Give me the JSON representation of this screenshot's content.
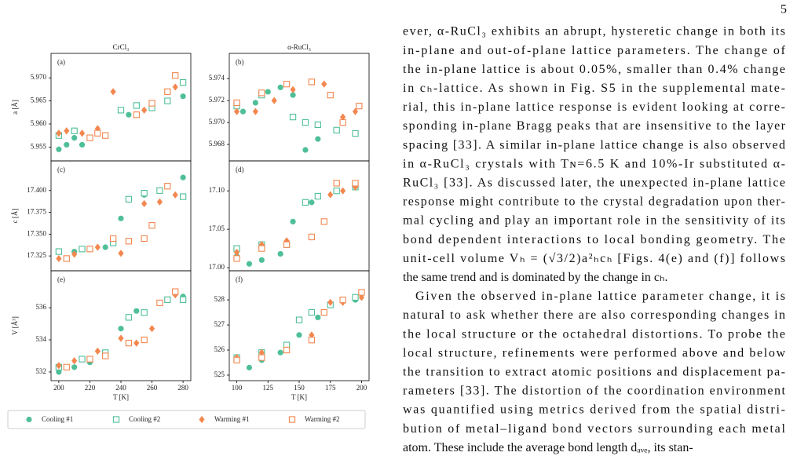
{
  "page_number": "5",
  "figure": {
    "legend_marker_styles": [
      "filled-circle",
      "open-square",
      "filled-diamond",
      "open-square"
    ]
  },
  "chart_data": [
    {
      "type": "scatter",
      "title": "CrCl₃",
      "annotation": "(a)",
      "y_label": "a [Å]",
      "xlim": [
        195,
        285
      ],
      "ylim": [
        5.952,
        5.9753
      ],
      "yticks": [
        5.955,
        {
          "value": 5.96,
          "label": "5.960"
        },
        5.965,
        {
          "value": 5.97,
          "label": "5.970"
        }
      ],
      "series": [
        {
          "name": "Cooling #1",
          "color": "#4fbf98",
          "x": [
            200,
            205,
            210,
            215,
            245,
            260,
            280
          ],
          "values": [
            5.9545,
            5.9555,
            5.957,
            5.9555,
            5.962,
            5.964,
            5.966
          ]
        },
        {
          "name": "Cooling #2",
          "color": "#4fbf98",
          "x": [
            200,
            210,
            240,
            250,
            260,
            270,
            280
          ],
          "values": [
            5.9575,
            5.9585,
            5.963,
            5.964,
            5.9635,
            5.965,
            5.969
          ]
        },
        {
          "name": "Warming #1",
          "color": "#f2874f",
          "x": [
            200,
            205,
            215,
            225,
            235,
            255,
            275
          ],
          "values": [
            5.958,
            5.9585,
            5.958,
            5.959,
            5.967,
            5.963,
            5.968
          ]
        },
        {
          "name": "Warming #2",
          "color": "#f2874f",
          "x": [
            220,
            225,
            230,
            250,
            260,
            270,
            275
          ],
          "values": [
            5.957,
            5.958,
            5.9575,
            5.962,
            5.9645,
            5.967,
            5.9705
          ]
        }
      ]
    },
    {
      "type": "scatter",
      "title": "α-RuCl₃",
      "annotation": "(b)",
      "xlim": [
        94,
        206
      ],
      "ylim": [
        5.9665,
        5.9763
      ],
      "yticks": [
        5.968,
        {
          "value": 5.97,
          "label": "5.970"
        },
        5.972,
        5.974
      ],
      "series": [
        {
          "x": [
            105,
            115,
            125,
            135,
            145,
            155,
            165
          ],
          "values": [
            5.971,
            5.9718,
            5.9728,
            5.9732,
            5.9725,
            5.9675,
            5.9685
          ]
        },
        {
          "x": [
            100,
            120,
            145,
            155,
            165,
            180,
            195
          ],
          "values": [
            5.9715,
            5.9725,
            5.9705,
            5.97,
            5.9698,
            5.9693,
            5.969
          ]
        },
        {
          "x": [
            100,
            115,
            130,
            145,
            170,
            185,
            195
          ],
          "values": [
            5.971,
            5.971,
            5.972,
            5.973,
            5.9735,
            5.9705,
            5.971
          ]
        },
        {
          "x": [
            100,
            120,
            140,
            160,
            175,
            185,
            198
          ],
          "values": [
            5.9718,
            5.9727,
            5.9735,
            5.9737,
            5.9725,
            5.97,
            5.9715
          ]
        }
      ]
    },
    {
      "type": "scatter",
      "annotation": "(c)",
      "y_label": "c [Å]",
      "xlim": [
        195,
        285
      ],
      "ylim": [
        17.308,
        17.434
      ],
      "yticks": [
        17.325,
        {
          "value": 17.35,
          "label": "17.350"
        },
        17.375,
        {
          "value": 17.4,
          "label": "17.400"
        }
      ],
      "series": [
        {
          "x": [
            200,
            210,
            230,
            240,
            255,
            270,
            280
          ],
          "values": [
            17.33,
            17.33,
            17.335,
            17.368,
            17.395,
            17.405,
            17.415
          ]
        },
        {
          "x": [
            200,
            215,
            235,
            245,
            255,
            265,
            280
          ],
          "values": [
            17.33,
            17.333,
            17.34,
            17.39,
            17.397,
            17.4,
            17.393
          ]
        },
        {
          "x": [
            200,
            210,
            225,
            240,
            255,
            265,
            275
          ],
          "values": [
            17.322,
            17.327,
            17.335,
            17.328,
            17.385,
            17.387,
            17.395
          ]
        },
        {
          "x": [
            205,
            220,
            235,
            245,
            255,
            260,
            270
          ],
          "values": [
            17.322,
            17.333,
            17.345,
            17.342,
            17.345,
            17.36,
            17.405
          ]
        }
      ]
    },
    {
      "type": "scatter",
      "annotation": "(d)",
      "xlim": [
        94,
        206
      ],
      "ylim": [
        16.996,
        17.139
      ],
      "yticks": [
        {
          "value": 17,
          "label": "17.00"
        },
        17.05,
        {
          "value": 17.1,
          "label": "17.10"
        }
      ],
      "series": [
        {
          "x": [
            100,
            110,
            120,
            135,
            145,
            160,
            195
          ],
          "values": [
            17.015,
            17.005,
            17.01,
            17.018,
            17.06,
            17.085,
            17.105
          ]
        },
        {
          "x": [
            100,
            120,
            140,
            155,
            165,
            180,
            195
          ],
          "values": [
            17.025,
            17.03,
            17.03,
            17.085,
            17.093,
            17.1,
            17.105
          ]
        },
        {
          "x": [
            100,
            120,
            140,
            160,
            175,
            185,
            195
          ],
          "values": [
            17.02,
            17.03,
            17.035,
            17.04,
            17.095,
            17.1,
            17.105
          ]
        },
        {
          "x": [
            100,
            120,
            140,
            160,
            170,
            180,
            195
          ],
          "values": [
            17.012,
            17.025,
            17.03,
            17.04,
            17.06,
            17.11,
            17.11
          ]
        }
      ]
    },
    {
      "type": "scatter",
      "annotation": "(e)",
      "y_label": "V [Å³]",
      "x_label": "T [K]",
      "xlim": [
        195,
        285
      ],
      "xticks": [
        200,
        220,
        240,
        260,
        280
      ],
      "ylim": [
        531.46,
        538.3
      ],
      "yticks": [
        532,
        534,
        536
      ],
      "series": [
        {
          "x": [
            200,
            210,
            220,
            240,
            250,
            265,
            280
          ],
          "values": [
            532.0,
            532.3,
            532.6,
            534.7,
            535.8,
            536.3,
            536.7
          ]
        },
        {
          "x": [
            200,
            215,
            230,
            245,
            255,
            270,
            280
          ],
          "values": [
            532.3,
            532.8,
            533.2,
            535.4,
            535.7,
            536.5,
            536.5
          ]
        },
        {
          "x": [
            200,
            210,
            225,
            240,
            250,
            260,
            275
          ],
          "values": [
            532.4,
            532.7,
            533.3,
            534.1,
            533.8,
            534.7,
            536.8
          ]
        },
        {
          "x": [
            205,
            220,
            230,
            245,
            255,
            265,
            275
          ],
          "values": [
            532.3,
            532.8,
            533.0,
            533.8,
            534.0,
            536.3,
            537.0
          ]
        }
      ]
    },
    {
      "type": "scatter",
      "annotation": "(f)",
      "x_label": "T [K]",
      "xlim": [
        94,
        206
      ],
      "xticks": [
        100,
        125,
        150,
        175,
        200
      ],
      "ylim": [
        524.78,
        529.16
      ],
      "yticks": [
        525,
        526,
        527,
        528
      ],
      "series": [
        {
          "x": [
            100,
            110,
            120,
            135,
            150,
            165,
            195
          ],
          "values": [
            525.6,
            525.3,
            525.6,
            525.9,
            526.6,
            527.3,
            528.0
          ]
        },
        {
          "x": [
            100,
            120,
            140,
            150,
            160,
            175,
            195
          ],
          "values": [
            525.7,
            525.9,
            526.2,
            527.2,
            527.5,
            527.8,
            528.1
          ]
        },
        {
          "x": [
            100,
            120,
            140,
            160,
            175,
            185,
            200
          ],
          "values": [
            525.7,
            525.9,
            526.0,
            526.6,
            527.9,
            527.9,
            528.1
          ]
        },
        {
          "x": [
            100,
            120,
            140,
            160,
            170,
            185,
            200
          ],
          "values": [
            525.6,
            525.7,
            526.0,
            526.4,
            527.5,
            528.0,
            528.3
          ]
        }
      ]
    }
  ],
  "text": {
    "paragraphs": [
      [
        "ever, α-RuCl₃ exhibits an abrupt, hysteretic change in both its",
        "in-plane and out-of-plane lattice parameters.  The change of",
        "the in-plane lattice is about 0.05%, smaller than 0.4% change",
        "in cₕ-lattice.  As shown in Fig. S5 in the supplemental mate-",
        "rial, this in-plane lattice response is evident looking at corre-",
        "sponding in-plane Bragg peaks that are insensitive to the layer",
        "spacing [33].  A similar in-plane lattice change is also observed",
        "in α-RuCl₃ crystals with Tɴ=6.5 K and 10%-Ir substituted α-",
        "RuCl₃ [33].  As discussed later, the unexpected in-plane lattice",
        "response might contribute to the crystal degradation upon ther-",
        "mal cycling and play an important role in the sensitivity of its",
        "bond dependent interactions to local bonding geometry.  The",
        "unit-cell volume Vₕ = (√3/2)a²ₕcₕ [Figs. 4(e) and (f)] follows",
        "the same trend and is dominated by the change in cₕ."
      ],
      [
        "Given the observed in-plane lattice parameter change, it is",
        "natural to ask whether there are also corresponding changes in",
        "the local structure or the octahedral distortions.  To probe the",
        "local structure, refinements were performed above and below",
        "the transition to extract atomic positions and displacement pa-",
        "rameters [33].  The distortion of the coordination environment",
        "was quantified using metrics derived from the spatial distri-",
        "bution of metal–ligand bond vectors surrounding each metal",
        "atom.  These include the average bond length dₐᵥₑ, its stan-"
      ]
    ]
  }
}
